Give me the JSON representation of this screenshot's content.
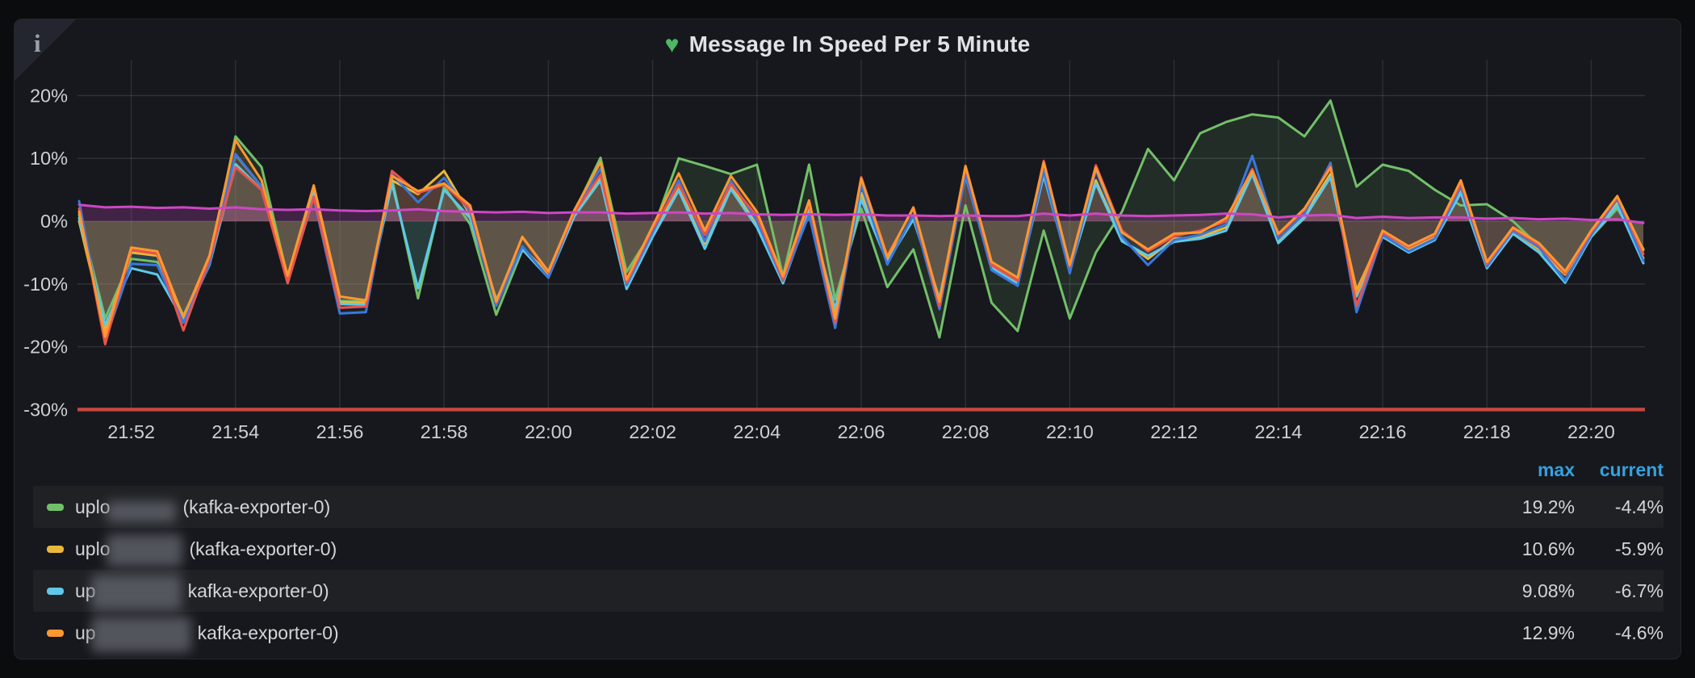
{
  "panel": {
    "title": "Message In Speed Per 5 Minute",
    "title_icon": "♥",
    "title_icon_color": "#4cb765",
    "info_icon": "i"
  },
  "chart_data": {
    "type": "line",
    "title": "Message In Speed Per 5 Minute",
    "x_start": "21:51",
    "x_end": "22:21",
    "point_interval_seconds": 30,
    "x_tick_labels": [
      "21:52",
      "21:54",
      "21:56",
      "21:58",
      "22:00",
      "22:02",
      "22:04",
      "22:06",
      "22:08",
      "22:10",
      "22:12",
      "22:14",
      "22:16",
      "22:18",
      "22:20"
    ],
    "y_tick_labels": [
      "20%",
      "10%",
      "0%",
      "-10%",
      "-20%",
      "-30%"
    ],
    "y_tick_values": [
      20,
      10,
      0,
      -10,
      -20,
      -30
    ],
    "ylim": [
      -31.5,
      22.5
    ],
    "unit": "percent",
    "grid": true,
    "legend_position": "bottom",
    "threshold": {
      "value": -30,
      "color": "#c4463e"
    },
    "series": [
      {
        "id": "green",
        "color": "#73bf69",
        "fill_opacity": 0.13,
        "values": [
          1,
          -15.5,
          -6,
          -6.5,
          -15,
          -6.5,
          13.5,
          8.6,
          -9,
          4.4,
          -12.7,
          -12.8,
          6.8,
          -12.3,
          5.5,
          -0.5,
          -14.9,
          -4.6,
          -8,
          1.5,
          10.1,
          -8.1,
          -1.5,
          10,
          8.8,
          7.5,
          9,
          -8.8,
          9,
          -12.5,
          2,
          -10.5,
          -4.5,
          -18.5,
          2.5,
          -13,
          -17.5,
          -1.5,
          -15.5,
          -5,
          1.5,
          11.5,
          6.5,
          14,
          15.8,
          17,
          16.5,
          13.5,
          19.2,
          5.5,
          9,
          8,
          5,
          2.5,
          2.7,
          0,
          -4,
          -9.5,
          -2.5,
          2,
          -4.4
        ]
      },
      {
        "id": "yellow",
        "color": "#eab839",
        "fill_opacity": 0.1,
        "values": [
          0,
          -17.5,
          -5,
          -5.5,
          -16,
          -6.2,
          10.6,
          5.5,
          -9,
          5.2,
          -12.9,
          -13,
          6.5,
          4.3,
          8,
          1,
          -12.5,
          -4.2,
          -8.4,
          1,
          7,
          -9.6,
          -2.2,
          5.3,
          -3.6,
          5.6,
          -0.5,
          -9.7,
          2,
          -14.5,
          4.5,
          -6.2,
          0.5,
          -12.5,
          7.8,
          -7.2,
          -9.8,
          7.5,
          -8,
          6.5,
          -3,
          -6,
          -2.8,
          -2.5,
          -1,
          7.8,
          -3,
          1,
          7.5,
          -11,
          -2,
          -4.5,
          -2.5,
          5,
          -7,
          -1.5,
          -4.5,
          -8.5,
          -2,
          3,
          -5.9
        ]
      },
      {
        "id": "cyan",
        "color": "#5ec9e8",
        "fill_opacity": 0.1,
        "values": [
          0.5,
          -16.5,
          -7.5,
          -8.5,
          -15.8,
          -7,
          9.08,
          5,
          -9.2,
          4.6,
          -13.2,
          -13.3,
          6,
          -10.7,
          5,
          0.5,
          -12.5,
          -4.5,
          -9,
          0.8,
          6.5,
          -10.8,
          -2.5,
          4.9,
          -4.4,
          5.1,
          -1,
          -9.9,
          1.5,
          -14,
          3.5,
          -6.5,
          0.3,
          -12.3,
          7.2,
          -7.4,
          -10,
          7.3,
          -7.8,
          6,
          -3.2,
          -5.5,
          -3.3,
          -2.8,
          -1.5,
          7.5,
          -3.5,
          0.5,
          7,
          -12,
          -2.5,
          -5,
          -3,
          4.5,
          -7.5,
          -2,
          -5,
          -9.8,
          -2.5,
          2.5,
          -6.7
        ]
      },
      {
        "id": "blue",
        "color": "#3a78db",
        "fill_opacity": 0.1,
        "values": [
          3.2,
          -19,
          -6.8,
          -7,
          -16.2,
          -6.8,
          10.7,
          5.5,
          -9.5,
          3.7,
          -14.7,
          -14.5,
          7.5,
          3,
          6.9,
          1.5,
          -13.5,
          -4,
          -9,
          1.6,
          8.4,
          -10.2,
          -1.8,
          6.5,
          -3.2,
          6.4,
          0,
          -9.5,
          1,
          -17,
          5.8,
          -6.9,
          1,
          -14,
          7.4,
          -7.8,
          -10.3,
          8,
          -8.3,
          8.2,
          -2.5,
          -7,
          -3,
          -2.2,
          -0.5,
          10.4,
          -2.8,
          1.2,
          9.3,
          -14.5,
          -2.2,
          -4.8,
          -2.8,
          5.5,
          -7.2,
          -1.5,
          -4.2,
          -9.5,
          -2.2,
          3.5,
          -6.3
        ]
      },
      {
        "id": "red",
        "color": "#e8544b",
        "fill_opacity": 0.1,
        "values": [
          2,
          -19.6,
          -4.6,
          -5.2,
          -17.4,
          -6,
          8.6,
          5,
          -9.9,
          3.9,
          -13.8,
          -13.6,
          8,
          4.5,
          5.8,
          2,
          -13,
          -2.6,
          -8.2,
          1.4,
          7.4,
          -9.8,
          -1.2,
          5.8,
          -2.2,
          5.9,
          0.8,
          -9.3,
          2.8,
          -16.2,
          7,
          -5.5,
          2,
          -13.5,
          8.6,
          -7,
          -9.5,
          9.6,
          -7.2,
          8.9,
          -1.5,
          -4.8,
          -2.4,
          -1.5,
          0,
          8.3,
          -2.2,
          1.8,
          8.8,
          -13.5,
          -1.8,
          -4.2,
          -2.2,
          6,
          -6.8,
          -1.2,
          -3.8,
          -8.3,
          -1.8,
          3.8,
          -5.2
        ]
      },
      {
        "id": "orange",
        "color": "#ff9830",
        "fill_opacity": 0.1,
        "values": [
          1.5,
          -18.4,
          -4.2,
          -4.8,
          -15.3,
          -5.5,
          12.9,
          6.5,
          -8.7,
          5.7,
          -12,
          -12.6,
          7.2,
          4.8,
          6,
          2.5,
          -12.8,
          -2.5,
          -8,
          1.8,
          9.4,
          -9.3,
          -0.8,
          7.6,
          -1.5,
          7.2,
          1.5,
          -8.8,
          3.3,
          -15.5,
          6.8,
          -5.8,
          2.2,
          -12.8,
          8.8,
          -6.5,
          -9,
          9.3,
          -7,
          8.5,
          -1.8,
          -4.5,
          -2,
          -1.8,
          0.5,
          8,
          -2,
          2,
          8.5,
          -11.5,
          -1.5,
          -4,
          -2,
          6.5,
          -6.5,
          -1,
          -3.5,
          -8,
          -1.5,
          4,
          -4.6
        ]
      },
      {
        "id": "magenta",
        "color": "#ce47c4",
        "fill_opacity": 0.24,
        "values": [
          2.6,
          2.2,
          2.3,
          2.1,
          2.2,
          2,
          2.2,
          1.9,
          1.8,
          1.9,
          1.7,
          1.6,
          1.7,
          1.9,
          1.6,
          1.5,
          1.4,
          1.5,
          1.3,
          1.4,
          1.4,
          1.2,
          1.3,
          1.4,
          1.2,
          1.3,
          1.1,
          1,
          1.1,
          1,
          1.1,
          0.9,
          0.9,
          0.8,
          0.9,
          0.8,
          0.8,
          1.2,
          0.9,
          1.2,
          0.9,
          0.8,
          0.9,
          1,
          1.2,
          1.1,
          0.6,
          0.9,
          1,
          0.5,
          0.7,
          0.5,
          0.6,
          0.6,
          0.4,
          0.5,
          0.3,
          0.4,
          0.2,
          0.3,
          -0.3
        ]
      }
    ]
  },
  "legend": {
    "columns": [
      "max",
      "current"
    ],
    "header_color": "#35a1e0",
    "rows": [
      {
        "color": "#73bf69",
        "prefix": "uplo",
        "redacted": true,
        "suffix": "(kafka-exporter-0)",
        "max": "19.2%",
        "current": "-4.4%"
      },
      {
        "color": "#eab839",
        "prefix": "uplo",
        "redacted": true,
        "suffix": "(kafka-exporter-0)",
        "max": "10.6%",
        "current": "-5.9%"
      },
      {
        "color": "#5ec9e8",
        "prefix": "up",
        "redacted": true,
        "suffix": "kafka-exporter-0)",
        "max": "9.08%",
        "current": "-6.7%"
      },
      {
        "color": "#ff9830",
        "prefix": "up",
        "redacted": true,
        "suffix": "kafka-exporter-0)",
        "max": "12.9%",
        "current": "-4.6%"
      }
    ]
  }
}
